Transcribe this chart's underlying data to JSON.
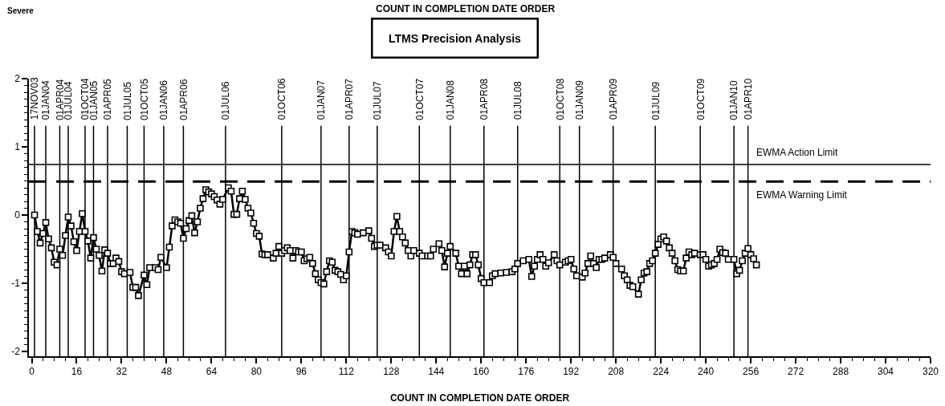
{
  "chart_data": {
    "type": "line",
    "title": "LTMS Precision Analysis",
    "annotations": [
      "COUNT IN COMPLETION DATE ORDER",
      "Severe"
    ],
    "xlabel": "COUNT IN COMPLETION DATE ORDER",
    "marker": "square",
    "line_style": "solid",
    "xlim": [
      -1,
      320
    ],
    "xticks": [
      0,
      {
        "value": 4,
        "label": null
      },
      {
        "value": 8,
        "label": null
      },
      {
        "value": 12,
        "label": null
      },
      16,
      {
        "value": 20,
        "label": null
      },
      {
        "value": 24,
        "label": null
      },
      {
        "value": 28,
        "label": null
      },
      32,
      {
        "value": 36,
        "label": null
      },
      {
        "value": 40,
        "label": null
      },
      {
        "value": 44,
        "label": null
      },
      48,
      {
        "value": 52,
        "label": null
      },
      {
        "value": 56,
        "label": null
      },
      {
        "value": 60,
        "label": null
      },
      64,
      {
        "value": 68,
        "label": null
      },
      {
        "value": 72,
        "label": null
      },
      {
        "value": 76,
        "label": null
      },
      80,
      {
        "value": 84,
        "label": null
      },
      {
        "value": 88,
        "label": null
      },
      {
        "value": 92,
        "label": null
      },
      96,
      {
        "value": 100,
        "label": null
      },
      {
        "value": 104,
        "label": null
      },
      {
        "value": 108,
        "label": null
      },
      112,
      {
        "value": 116,
        "label": null
      },
      {
        "value": 120,
        "label": null
      },
      {
        "value": 124,
        "label": null
      },
      128,
      {
        "value": 132,
        "label": null
      },
      {
        "value": 136,
        "label": null
      },
      {
        "value": 140,
        "label": null
      },
      144,
      {
        "value": 148,
        "label": null
      },
      {
        "value": 152,
        "label": null
      },
      {
        "value": 156,
        "label": null
      },
      160,
      {
        "value": 164,
        "label": null
      },
      {
        "value": 168,
        "label": null
      },
      {
        "value": 172,
        "label": null
      },
      176,
      {
        "value": 180,
        "label": null
      },
      {
        "value": 184,
        "label": null
      },
      {
        "value": 188,
        "label": null
      },
      192,
      {
        "value": 196,
        "label": null
      },
      {
        "value": 200,
        "label": null
      },
      {
        "value": 204,
        "label": null
      },
      208,
      {
        "value": 212,
        "label": null
      },
      {
        "value": 216,
        "label": null
      },
      {
        "value": 220,
        "label": null
      },
      224,
      {
        "value": 228,
        "label": null
      },
      {
        "value": 232,
        "label": null
      },
      {
        "value": 236,
        "label": null
      },
      240,
      {
        "value": 244,
        "label": null
      },
      {
        "value": 248,
        "label": null
      },
      {
        "value": 252,
        "label": null
      },
      256,
      {
        "value": 260,
        "label": null
      },
      {
        "value": 264,
        "label": null
      },
      {
        "value": 268,
        "label": null
      },
      272,
      {
        "value": 276,
        "label": null
      },
      {
        "value": 280,
        "label": null
      },
      {
        "value": 284,
        "label": null
      },
      288,
      {
        "value": 292,
        "label": null
      },
      {
        "value": 296,
        "label": null
      },
      {
        "value": 300,
        "label": null
      },
      304,
      {
        "value": 308,
        "label": null
      },
      {
        "value": 312,
        "label": null
      },
      {
        "value": 316,
        "label": null
      },
      320
    ],
    "ylim": [
      -2.07,
      2
    ],
    "yticks": [
      -2,
      {
        "value": -1.9,
        "label": null
      },
      {
        "value": -1.8,
        "label": null
      },
      {
        "value": -1.7,
        "label": null
      },
      {
        "value": -1.6,
        "label": null
      },
      {
        "value": -1.5,
        "label": null
      },
      {
        "value": -1.4,
        "label": null
      },
      {
        "value": -1.3,
        "label": null
      },
      {
        "value": -1.2,
        "label": null
      },
      {
        "value": -1.1,
        "label": null
      },
      -1,
      {
        "value": -0.9,
        "label": null
      },
      {
        "value": -0.8,
        "label": null
      },
      {
        "value": -0.7,
        "label": null
      },
      {
        "value": -0.6,
        "label": null
      },
      {
        "value": -0.5,
        "label": null
      },
      {
        "value": -0.4,
        "label": null
      },
      {
        "value": -0.3,
        "label": null
      },
      {
        "value": -0.2,
        "label": null
      },
      {
        "value": -0.1,
        "label": null
      },
      0,
      {
        "value": 0.1,
        "label": null
      },
      {
        "value": 0.2,
        "label": null
      },
      {
        "value": 0.3,
        "label": null
      },
      {
        "value": 0.4,
        "label": null
      },
      {
        "value": 0.5,
        "label": null
      },
      {
        "value": 0.6,
        "label": null
      },
      {
        "value": 0.7,
        "label": null
      },
      {
        "value": 0.8,
        "label": null
      },
      {
        "value": 0.9,
        "label": null
      },
      1,
      {
        "value": 1.1,
        "label": null
      },
      {
        "value": 1.2,
        "label": null
      },
      {
        "value": 1.3,
        "label": null
      },
      {
        "value": 1.4,
        "label": null
      },
      {
        "value": 1.5,
        "label": null
      },
      {
        "value": 1.6,
        "label": null
      },
      {
        "value": 1.7,
        "label": null
      },
      {
        "value": 1.8,
        "label": null
      },
      {
        "value": 1.9,
        "label": null
      },
      2
    ],
    "ref_lines": [
      {
        "axis": "x",
        "value": 1,
        "label": "17NOV03"
      },
      {
        "axis": "x",
        "value": 5,
        "label": "01JAN04"
      },
      {
        "axis": "x",
        "value": 10,
        "label": "01APR04"
      },
      {
        "axis": "x",
        "value": 13,
        "label": "01JUL04"
      },
      {
        "axis": "x",
        "value": 19,
        "label": "01OCT04"
      },
      {
        "axis": "x",
        "value": 22,
        "label": "01JAN05"
      },
      {
        "axis": "x",
        "value": 27,
        "label": "01APR05"
      },
      {
        "axis": "x",
        "value": 34,
        "label": "01JUL05"
      },
      {
        "axis": "x",
        "value": 40,
        "label": "01OCT05"
      },
      {
        "axis": "x",
        "value": 47,
        "label": "01JAN06"
      },
      {
        "axis": "x",
        "value": 54,
        "label": "01APR06"
      },
      {
        "axis": "x",
        "value": 69,
        "label": "01JUL06"
      },
      {
        "axis": "x",
        "value": 89,
        "label": "01OCT06"
      },
      {
        "axis": "x",
        "value": 103,
        "label": "01JAN07"
      },
      {
        "axis": "x",
        "value": 113,
        "label": "01APR07"
      },
      {
        "axis": "x",
        "value": 123,
        "label": "01JUL07"
      },
      {
        "axis": "x",
        "value": 138,
        "label": "01OCT07"
      },
      {
        "axis": "x",
        "value": 149,
        "label": "01JAN08"
      },
      {
        "axis": "x",
        "value": 161,
        "label": "01APR08"
      },
      {
        "axis": "x",
        "value": 173,
        "label": "01JUL08"
      },
      {
        "axis": "x",
        "value": 188,
        "label": "01OCT08"
      },
      {
        "axis": "x",
        "value": 195,
        "label": "01JAN09"
      },
      {
        "axis": "x",
        "value": 207,
        "label": "01APR09"
      },
      {
        "axis": "x",
        "value": 222,
        "label": "01JUL09"
      },
      {
        "axis": "x",
        "value": 238,
        "label": "01OCT09"
      },
      {
        "axis": "x",
        "value": 250,
        "label": "01JAN10"
      },
      {
        "axis": "x",
        "value": 255,
        "label": "01APR10"
      },
      {
        "axis": "y",
        "value": 0.74,
        "label": "EWMA Action Limit",
        "line_style": "solid"
      },
      {
        "axis": "y",
        "value": 0.49,
        "label": "EWMA Warning Limit",
        "line_style": "dashed"
      }
    ],
    "series": [
      {
        "color": "#000000",
        "x": [
          1,
          2,
          3,
          4,
          5,
          6,
          7,
          8,
          9,
          10,
          11,
          12,
          13,
          14,
          15,
          16,
          17,
          18,
          19,
          20,
          21,
          22,
          23,
          24,
          25,
          26,
          27,
          28,
          29,
          30,
          31,
          32,
          33,
          35,
          36,
          37,
          38,
          40,
          41,
          42,
          44,
          45,
          46,
          48,
          49,
          50,
          51,
          52,
          53,
          54,
          55,
          56,
          57,
          58,
          59,
          60,
          61,
          62,
          63,
          64,
          65,
          66,
          67,
          68,
          70,
          71,
          72,
          73,
          74,
          75,
          76,
          77,
          78,
          79,
          80,
          81,
          82,
          83,
          84,
          86,
          87,
          88,
          89,
          90,
          91,
          92,
          93,
          94,
          95,
          96,
          97,
          98,
          99,
          100,
          101,
          102,
          103,
          104,
          105,
          106,
          107,
          108,
          109,
          110,
          111,
          112,
          113,
          114,
          115,
          116,
          118,
          120,
          121,
          122,
          123,
          124,
          126,
          127,
          128,
          129,
          130,
          131,
          132,
          133,
          134,
          135,
          136,
          138,
          139,
          141,
          142,
          143,
          145,
          146,
          147,
          148,
          149,
          151,
          152,
          153,
          154,
          155,
          156,
          157,
          158,
          159,
          160,
          161,
          163,
          164,
          165,
          167,
          169,
          171,
          172,
          173,
          175,
          177,
          178,
          179,
          180,
          181,
          182,
          183,
          184,
          186,
          187,
          188,
          190,
          191,
          192,
          193,
          194,
          196,
          197,
          198,
          199,
          200,
          201,
          202,
          203,
          204,
          206,
          207,
          208,
          210,
          211,
          212,
          213,
          214,
          216,
          217,
          218,
          219,
          220,
          221,
          222,
          223,
          224,
          225,
          226,
          227,
          228,
          229,
          230,
          231,
          232,
          233,
          234,
          235,
          236,
          238,
          239,
          240,
          241,
          242,
          243,
          244,
          245,
          246,
          247,
          248,
          250,
          251,
          252,
          253,
          254,
          255,
          256,
          257,
          258
        ],
        "values": [
          0.0,
          -0.24,
          -0.41,
          -0.27,
          -0.11,
          -0.35,
          -0.48,
          -0.69,
          -0.73,
          -0.5,
          -0.59,
          -0.3,
          -0.03,
          -0.16,
          -0.39,
          -0.52,
          -0.24,
          0.02,
          -0.24,
          -0.38,
          -0.63,
          -0.33,
          -0.5,
          -0.59,
          -0.82,
          -0.51,
          -0.56,
          -0.71,
          -0.71,
          -0.63,
          -0.68,
          -0.83,
          -0.86,
          -0.84,
          -1.06,
          -1.06,
          -1.18,
          -0.88,
          -1.02,
          -0.77,
          -0.77,
          -0.8,
          -0.62,
          -0.77,
          -0.47,
          -0.16,
          -0.07,
          -0.1,
          -0.12,
          -0.34,
          -0.2,
          -0.08,
          -0.01,
          -0.26,
          -0.1,
          0.1,
          0.24,
          0.37,
          0.34,
          0.31,
          0.27,
          0.22,
          0.16,
          0.23,
          0.4,
          0.35,
          0.01,
          0.01,
          0.24,
          0.35,
          0.23,
          0.1,
          0.03,
          -0.12,
          -0.27,
          -0.31,
          -0.57,
          -0.58,
          -0.58,
          -0.63,
          -0.56,
          -0.46,
          -0.56,
          -0.52,
          -0.48,
          -0.52,
          -0.63,
          -0.52,
          -0.54,
          -0.54,
          -0.67,
          -0.64,
          -0.62,
          -0.71,
          -0.86,
          -0.95,
          -0.99,
          -1.01,
          -0.83,
          -0.67,
          -0.69,
          -0.81,
          -0.83,
          -0.87,
          -0.95,
          -0.89,
          -0.54,
          -0.24,
          -0.26,
          -0.28,
          -0.26,
          -0.23,
          -0.34,
          -0.46,
          -0.44,
          -0.44,
          -0.48,
          -0.54,
          -0.6,
          -0.24,
          -0.02,
          -0.24,
          -0.32,
          -0.41,
          -0.52,
          -0.6,
          -0.52,
          -0.56,
          -0.6,
          -0.6,
          -0.6,
          -0.5,
          -0.42,
          -0.52,
          -0.76,
          -0.56,
          -0.46,
          -0.56,
          -0.75,
          -0.86,
          -0.75,
          -0.86,
          -0.73,
          -0.58,
          -0.58,
          -0.73,
          -0.93,
          -0.99,
          -0.99,
          -0.89,
          -0.86,
          -0.85,
          -0.84,
          -0.83,
          -0.79,
          -0.71,
          -0.67,
          -0.65,
          -0.9,
          -0.75,
          -0.65,
          -0.58,
          -0.65,
          -0.75,
          -0.7,
          -0.58,
          -0.67,
          -0.73,
          -0.69,
          -0.67,
          -0.65,
          -0.79,
          -0.89,
          -0.91,
          -0.85,
          -0.71,
          -0.6,
          -0.71,
          -0.77,
          -0.65,
          -0.65,
          -0.63,
          -0.58,
          -0.62,
          -0.71,
          -0.79,
          -0.89,
          -0.95,
          -1.03,
          -1.05,
          -1.16,
          -0.95,
          -0.85,
          -0.83,
          -0.71,
          -0.67,
          -0.56,
          -0.43,
          -0.35,
          -0.32,
          -0.38,
          -0.48,
          -0.56,
          -0.67,
          -0.8,
          -0.82,
          -0.82,
          -0.63,
          -0.54,
          -0.58,
          -0.56,
          -0.58,
          -0.58,
          -0.65,
          -0.75,
          -0.73,
          -0.71,
          -0.65,
          -0.5,
          -0.55,
          -0.56,
          -0.65,
          -0.65,
          -0.86,
          -0.81,
          -0.67,
          -0.56,
          -0.49,
          -0.58,
          -0.64,
          -0.73
        ]
      }
    ]
  }
}
